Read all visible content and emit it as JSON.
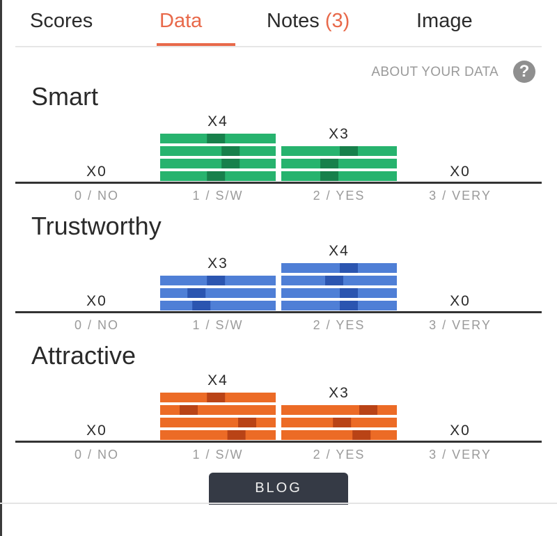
{
  "tabs": [
    {
      "label": "Scores",
      "active": false
    },
    {
      "label": "Data",
      "active": true
    },
    {
      "label": "Notes",
      "badge": "(3)",
      "active": false
    },
    {
      "label": "Image",
      "active": false
    }
  ],
  "about_link": "ABOUT YOUR DATA",
  "help_icon": "?",
  "blog_button": "BLOG",
  "colors": {
    "accent": "#e8694a",
    "smart": "#27b36e",
    "smart_dark": "#17804b",
    "trustworthy": "#4f7fd6",
    "trustworthy_dark": "#2b55b0",
    "attractive": "#ec6b26",
    "attractive_dark": "#b94316"
  },
  "chart_data": [
    {
      "type": "bar",
      "title": "Smart",
      "categories": [
        "0 / NO",
        "1 / S/W",
        "2 / YES",
        "3 / VERY"
      ],
      "values": [
        0,
        4,
        3,
        0
      ],
      "value_labels": [
        "X0",
        "X4",
        "X3",
        "X0"
      ],
      "color": "#27b36e",
      "mark_color": "#17804b",
      "mark_positions": [
        [],
        [
          0.48,
          0.63,
          0.63,
          0.48
        ],
        [
          0.6,
          0.4,
          0.4
        ],
        []
      ]
    },
    {
      "type": "bar",
      "title": "Trustworthy",
      "categories": [
        "0 / NO",
        "1 / S/W",
        "2 / YES",
        "3 / VERY"
      ],
      "values": [
        0,
        3,
        4,
        0
      ],
      "value_labels": [
        "X0",
        "X3",
        "X4",
        "X0"
      ],
      "color": "#4f7fd6",
      "mark_color": "#2b55b0",
      "mark_positions": [
        [],
        [
          0.48,
          0.28,
          0.33
        ],
        [
          0.6,
          0.45,
          0.6,
          0.6
        ],
        []
      ]
    },
    {
      "type": "bar",
      "title": "Attractive",
      "categories": [
        "0 / NO",
        "1 / S/W",
        "2 / YES",
        "3 / VERY"
      ],
      "values": [
        0,
        4,
        3,
        0
      ],
      "value_labels": [
        "X0",
        "X4",
        "X3",
        "X0"
      ],
      "color": "#ec6b26",
      "mark_color": "#b94316",
      "mark_positions": [
        [],
        [
          0.48,
          0.2,
          0.8,
          0.69
        ],
        [
          0.8,
          0.53,
          0.73
        ],
        []
      ]
    }
  ]
}
